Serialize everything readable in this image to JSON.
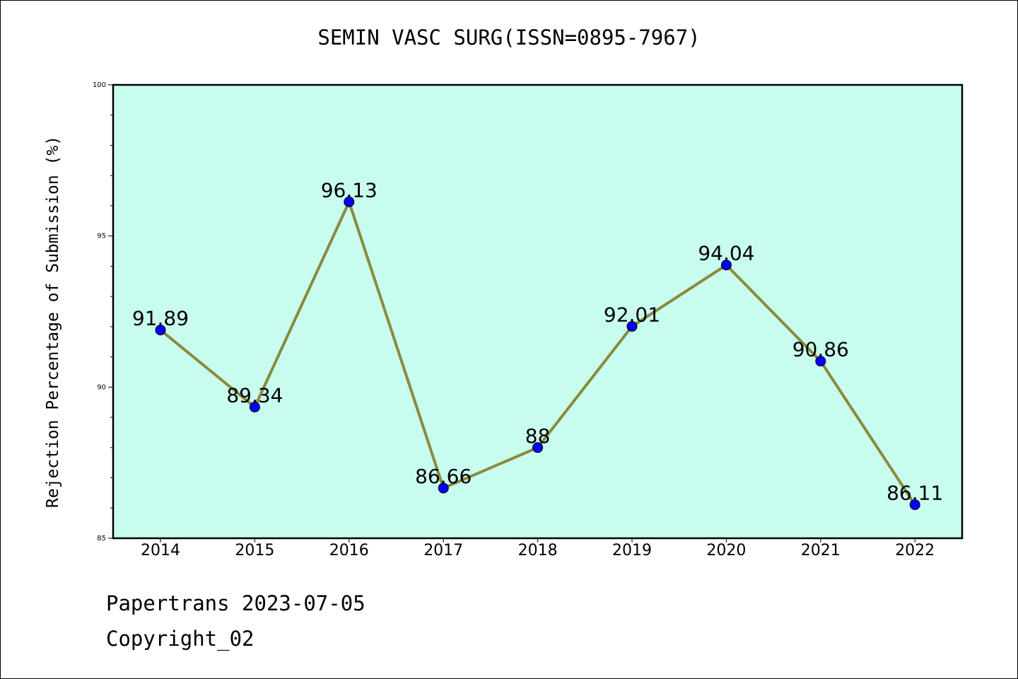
{
  "chart_data": {
    "type": "line",
    "title": "SEMIN VASC SURG(ISSN=0895-7967)",
    "xlabel": "",
    "ylabel": "Rejection Percentage of Submission (%)",
    "x": [
      "2014",
      "2015",
      "2016",
      "2017",
      "2018",
      "2019",
      "2020",
      "2021",
      "2022"
    ],
    "series": [
      {
        "values": [
          91.89,
          89.34,
          96.13,
          86.66,
          88,
          92.01,
          94.04,
          90.86,
          86.11
        ]
      }
    ],
    "data_labels": [
      "91.89",
      "89.34",
      "96.13",
      "86.66",
      "88",
      "92.01",
      "94.04",
      "90.86",
      "86.11"
    ],
    "ylim": [
      85,
      100
    ],
    "yticks_major": [
      85,
      90,
      95,
      100
    ],
    "yticks_minor_step": 1,
    "grid": false,
    "colors": {
      "plot_background": "#c8fcee",
      "line": "#8b8a3c",
      "marker": "#0000ff"
    }
  },
  "footer": {
    "line1": "Papertrans 2023-07-05",
    "line2": "Copyright_02"
  }
}
